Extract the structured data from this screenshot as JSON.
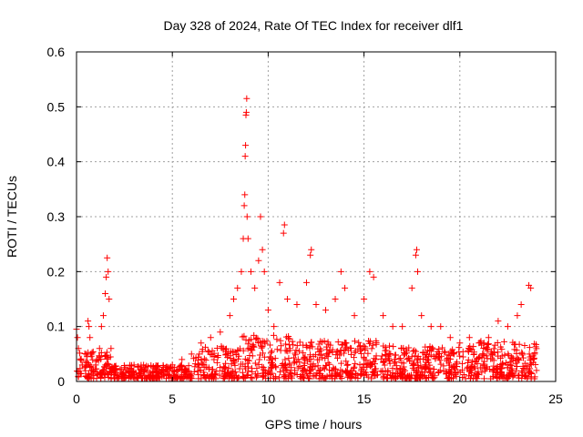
{
  "chart_data": {
    "type": "scatter",
    "title": "Day 328 of 2024, Rate Of TEC Index for receiver dlf1",
    "xlabel": "GPS time / hours",
    "ylabel": "ROTI / TECUs",
    "xlim": [
      0,
      25
    ],
    "ylim": [
      0,
      0.6
    ],
    "xticks": [
      0,
      5,
      10,
      15,
      20,
      25
    ],
    "yticks": [
      0,
      0.1,
      0.2,
      0.3,
      0.4,
      0.5,
      0.6
    ],
    "xtick_labels": [
      "0",
      "5",
      "10",
      "15",
      "20",
      "25"
    ],
    "ytick_labels": [
      "0",
      "0.1",
      "0.2",
      "0.3",
      "0.4",
      "0.5",
      "0.6"
    ],
    "grid": true,
    "marker": "+",
    "series_color": "#ff0000",
    "series": [
      {
        "name": "ROTI",
        "points": [
          [
            0.0,
            0.095
          ],
          [
            0.05,
            0.08
          ],
          [
            0.1,
            0.06
          ],
          [
            0.2,
            0.04
          ],
          [
            0.3,
            0.03
          ],
          [
            0.5,
            0.05
          ],
          [
            0.6,
            0.11
          ],
          [
            0.65,
            0.1
          ],
          [
            0.7,
            0.08
          ],
          [
            0.8,
            0.05
          ],
          [
            1.0,
            0.03
          ],
          [
            1.2,
            0.06
          ],
          [
            1.3,
            0.1
          ],
          [
            1.4,
            0.12
          ],
          [
            1.5,
            0.16
          ],
          [
            1.55,
            0.19
          ],
          [
            1.6,
            0.225
          ],
          [
            1.65,
            0.2
          ],
          [
            1.7,
            0.15
          ],
          [
            1.8,
            0.06
          ],
          [
            2.0,
            0.02
          ],
          [
            2.5,
            0.025
          ],
          [
            3.0,
            0.03
          ],
          [
            3.5,
            0.03
          ],
          [
            4.0,
            0.025
          ],
          [
            4.5,
            0.02
          ],
          [
            5.0,
            0.03
          ],
          [
            5.5,
            0.04
          ],
          [
            6.0,
            0.05
          ],
          [
            6.5,
            0.07
          ],
          [
            7.0,
            0.08
          ],
          [
            7.5,
            0.09
          ],
          [
            8.0,
            0.12
          ],
          [
            8.2,
            0.15
          ],
          [
            8.4,
            0.17
          ],
          [
            8.6,
            0.2
          ],
          [
            8.7,
            0.26
          ],
          [
            8.75,
            0.32
          ],
          [
            8.78,
            0.34
          ],
          [
            8.8,
            0.41
          ],
          [
            8.82,
            0.43
          ],
          [
            8.84,
            0.485
          ],
          [
            8.86,
            0.49
          ],
          [
            8.88,
            0.515
          ],
          [
            8.9,
            0.3
          ],
          [
            8.95,
            0.26
          ],
          [
            9.1,
            0.2
          ],
          [
            9.3,
            0.17
          ],
          [
            9.5,
            0.22
          ],
          [
            9.6,
            0.3
          ],
          [
            9.7,
            0.24
          ],
          [
            9.8,
            0.2
          ],
          [
            10.0,
            0.13
          ],
          [
            10.3,
            0.1
          ],
          [
            10.6,
            0.18
          ],
          [
            10.8,
            0.27
          ],
          [
            10.85,
            0.285
          ],
          [
            11.0,
            0.15
          ],
          [
            11.5,
            0.14
          ],
          [
            12.0,
            0.18
          ],
          [
            12.2,
            0.23
          ],
          [
            12.25,
            0.24
          ],
          [
            12.5,
            0.14
          ],
          [
            13.0,
            0.13
          ],
          [
            13.5,
            0.15
          ],
          [
            13.8,
            0.2
          ],
          [
            14.0,
            0.17
          ],
          [
            14.5,
            0.12
          ],
          [
            15.0,
            0.15
          ],
          [
            15.3,
            0.2
          ],
          [
            15.5,
            0.19
          ],
          [
            16.0,
            0.12
          ],
          [
            16.5,
            0.1
          ],
          [
            17.0,
            0.1
          ],
          [
            17.5,
            0.17
          ],
          [
            17.7,
            0.23
          ],
          [
            17.75,
            0.24
          ],
          [
            17.8,
            0.2
          ],
          [
            18.0,
            0.12
          ],
          [
            18.5,
            0.1
          ],
          [
            19.0,
            0.1
          ],
          [
            19.5,
            0.08
          ],
          [
            20.0,
            0.07
          ],
          [
            20.5,
            0.08
          ],
          [
            21.0,
            0.07
          ],
          [
            21.5,
            0.08
          ],
          [
            22.0,
            0.11
          ],
          [
            22.5,
            0.1
          ],
          [
            23.0,
            0.12
          ],
          [
            23.2,
            0.14
          ],
          [
            23.6,
            0.175
          ],
          [
            23.7,
            0.17
          ],
          [
            23.9,
            0.05
          ],
          [
            24.0,
            0.02
          ]
        ]
      }
    ],
    "density_notes": "dense cluster of red plus markers near baseline across full range, values mostly 0.0-0.1"
  }
}
